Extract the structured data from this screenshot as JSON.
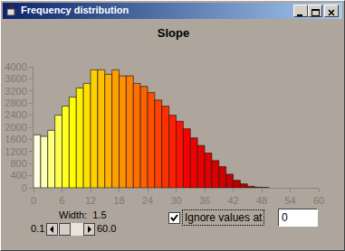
{
  "window": {
    "title": "Frequency distribution"
  },
  "chart_data": {
    "type": "histogram",
    "title": "Slope",
    "bins": [
      0,
      1.5,
      3,
      4.5,
      6,
      7.5,
      9,
      10.5,
      12,
      13.5,
      15,
      16.5,
      18,
      19.5,
      21,
      22.5,
      24,
      25.5,
      27,
      28.5,
      30,
      31.5,
      33,
      34.5,
      36,
      37.5,
      39,
      40.5,
      42,
      43.5,
      45,
      46.5,
      48,
      49.5
    ],
    "values": [
      1750,
      1700,
      1900,
      2400,
      2700,
      3000,
      3300,
      3450,
      3900,
      3900,
      3750,
      3900,
      3700,
      3700,
      3450,
      3350,
      3150,
      2900,
      2700,
      2400,
      2200,
      1950,
      1650,
      1400,
      1150,
      900,
      700,
      450,
      250,
      130,
      50,
      20,
      10
    ],
    "colors": [
      "#ffffe0",
      "#ffffb0",
      "#ffff80",
      "#ffff50",
      "#ffff20",
      "#ffff00",
      "#fff000",
      "#ffe000",
      "#ffd000",
      "#ffc000",
      "#ffb000",
      "#ffa000",
      "#ff9000",
      "#ff8000",
      "#ff7000",
      "#ff6000",
      "#ff5000",
      "#ff4000",
      "#ff3000",
      "#ff2000",
      "#ff1000",
      "#f80000",
      "#f00000",
      "#e80000",
      "#e00000",
      "#d80000",
      "#d00000",
      "#c80000",
      "#c00000",
      "#b80000",
      "#b00000",
      "#a80000",
      "#a00000"
    ],
    "xlim": [
      0,
      60
    ],
    "xticks": [
      0,
      6,
      12,
      18,
      24,
      30,
      36,
      42,
      48,
      54,
      60
    ],
    "ylim": [
      0,
      4000
    ],
    "yticks": [
      0,
      400,
      800,
      1200,
      1600,
      2000,
      2400,
      2800,
      3200,
      3600,
      4000
    ],
    "grid": false
  },
  "controls": {
    "width_label": "Width:",
    "width_value": "1.5",
    "slider_min": "0.1",
    "slider_max": "60.0",
    "checkbox_label": "Ignore values at",
    "checkbox_checked": true,
    "ignore_value": "0"
  }
}
